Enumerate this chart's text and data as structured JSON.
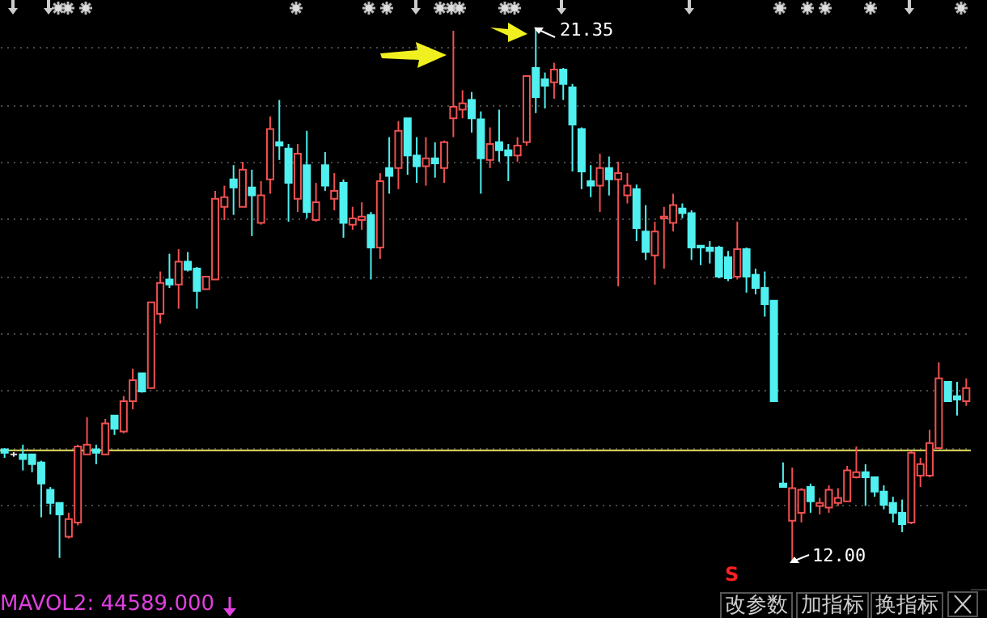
{
  "chart_data": {
    "type": "candlestick",
    "categories": [
      null,
      null,
      null,
      null,
      null,
      null,
      null,
      null,
      null,
      null,
      null,
      null,
      null,
      null,
      null,
      null,
      null,
      null,
      null,
      null,
      null,
      null,
      null,
      null,
      null,
      null,
      null,
      null,
      null,
      null,
      null,
      null,
      null,
      null,
      null,
      null,
      null,
      null,
      null,
      null,
      null,
      null,
      null,
      null,
      null,
      null,
      null,
      null,
      null,
      null,
      null,
      null,
      null,
      null,
      null,
      null,
      null,
      null,
      null,
      null,
      null,
      null,
      null,
      null,
      null,
      null,
      null,
      null,
      null,
      null,
      null,
      null,
      null,
      null,
      null,
      null,
      null,
      null,
      null,
      null,
      null,
      null,
      null,
      null,
      null,
      null,
      null,
      null,
      null,
      null,
      null,
      null,
      null,
      null,
      null,
      null,
      null,
      null,
      null,
      null,
      null,
      null,
      null,
      null,
      null,
      null
    ],
    "ohlc": [
      [
        13.97,
        13.99,
        13.82,
        13.91
      ],
      [
        13.88,
        13.92,
        13.84,
        13.88
      ],
      [
        13.88,
        14.05,
        13.6,
        13.8
      ],
      [
        13.88,
        13.88,
        13.57,
        13.71
      ],
      [
        13.74,
        13.77,
        12.78,
        13.37
      ],
      [
        13.26,
        13.31,
        12.83,
        13.03
      ],
      [
        13.03,
        13.03,
        12.07,
        12.83
      ],
      [
        12.44,
        12.86,
        12.41,
        12.75
      ],
      [
        12.69,
        14.05,
        12.64,
        14.02
      ],
      [
        13.88,
        14.53,
        13.88,
        14.05
      ],
      [
        13.97,
        14.05,
        13.71,
        13.91
      ],
      [
        13.88,
        14.5,
        13.88,
        14.42
      ],
      [
        14.56,
        14.56,
        14.22,
        14.33
      ],
      [
        14.28,
        14.9,
        14.25,
        14.81
      ],
      [
        14.81,
        15.38,
        14.67,
        15.18
      ],
      [
        15.3,
        15.3,
        14.96,
        14.98
      ],
      [
        15.04,
        16.54,
        15.04,
        16.54
      ],
      [
        16.34,
        17.08,
        16.17,
        16.88
      ],
      [
        16.94,
        17.39,
        16.79,
        16.85
      ],
      [
        16.85,
        17.47,
        16.43,
        17.25
      ],
      [
        17.25,
        17.42,
        17.08,
        17.11
      ],
      [
        17.13,
        17.16,
        16.43,
        16.74
      ],
      [
        16.77,
        16.99,
        16.77,
        16.99
      ],
      [
        16.94,
        18.49,
        16.94,
        18.35
      ],
      [
        18.21,
        18.58,
        17.98,
        18.38
      ],
      [
        18.69,
        18.94,
        18.07,
        18.55
      ],
      [
        18.21,
        19.0,
        18.21,
        18.86
      ],
      [
        18.55,
        18.86,
        17.7,
        18.41
      ],
      [
        17.93,
        18.66,
        17.9,
        18.41
      ],
      [
        18.69,
        19.79,
        18.44,
        19.57
      ],
      [
        19.34,
        20.08,
        19.03,
        19.28
      ],
      [
        19.23,
        19.31,
        17.95,
        18.63
      ],
      [
        18.35,
        19.31,
        18.12,
        19.14
      ],
      [
        18.94,
        19.54,
        18.01,
        18.12
      ],
      [
        17.98,
        18.63,
        17.95,
        18.29
      ],
      [
        18.94,
        19.17,
        18.49,
        18.58
      ],
      [
        18.35,
        18.8,
        18.15,
        18.49
      ],
      [
        18.63,
        18.69,
        17.67,
        17.93
      ],
      [
        17.9,
        18.21,
        17.81,
        18.01
      ],
      [
        17.98,
        18.29,
        17.81,
        18.04
      ],
      [
        18.07,
        18.12,
        16.94,
        17.5
      ],
      [
        17.5,
        18.8,
        17.3,
        18.66
      ],
      [
        18.89,
        19.43,
        18.44,
        18.75
      ],
      [
        18.89,
        19.71,
        18.52,
        19.54
      ],
      [
        19.76,
        19.76,
        18.77,
        19.11
      ],
      [
        19.11,
        19.43,
        18.63,
        18.92
      ],
      [
        18.92,
        19.43,
        18.58,
        19.06
      ],
      [
        19.06,
        19.34,
        18.72,
        18.97
      ],
      [
        18.89,
        19.37,
        18.63,
        19.34
      ],
      [
        19.76,
        21.29,
        19.43,
        19.96
      ],
      [
        19.91,
        20.25,
        19.76,
        20.02
      ],
      [
        20.08,
        20.22,
        19.51,
        19.76
      ],
      [
        19.74,
        19.88,
        18.44,
        19.06
      ],
      [
        19.03,
        19.6,
        18.89,
        19.31
      ],
      [
        19.34,
        19.91,
        19.0,
        19.2
      ],
      [
        19.2,
        19.31,
        18.66,
        19.11
      ],
      [
        19.11,
        19.43,
        19.0,
        19.28
      ],
      [
        19.34,
        20.5,
        19.28,
        20.5
      ],
      [
        20.64,
        21.35,
        19.85,
        20.13
      ],
      [
        20.44,
        20.56,
        19.93,
        20.33
      ],
      [
        20.39,
        20.73,
        20.1,
        20.61
      ],
      [
        20.61,
        20.64,
        20.08,
        20.36
      ],
      [
        20.3,
        20.36,
        18.83,
        19.65
      ],
      [
        19.57,
        19.6,
        18.52,
        18.83
      ],
      [
        18.66,
        18.94,
        18.38,
        18.58
      ],
      [
        18.58,
        19.14,
        18.12,
        18.89
      ],
      [
        18.89,
        19.09,
        18.41,
        18.69
      ],
      [
        18.69,
        19.0,
        16.82,
        18.8
      ],
      [
        18.41,
        18.8,
        18.27,
        18.58
      ],
      [
        18.52,
        18.6,
        17.61,
        17.84
      ],
      [
        17.78,
        18.24,
        17.28,
        17.42
      ],
      [
        17.36,
        17.95,
        16.85,
        17.78
      ],
      [
        18.01,
        18.21,
        17.13,
        18.04
      ],
      [
        17.93,
        18.44,
        17.78,
        18.24
      ],
      [
        18.18,
        18.27,
        18.01,
        18.1
      ],
      [
        18.1,
        18.15,
        17.28,
        17.5
      ],
      [
        17.53,
        17.53,
        17.19,
        17.5
      ],
      [
        17.5,
        17.61,
        17.22,
        17.44
      ],
      [
        17.5,
        17.53,
        16.96,
        16.99
      ],
      [
        17.33,
        17.44,
        16.91,
        16.96
      ],
      [
        16.99,
        17.95,
        16.94,
        17.47
      ],
      [
        17.47,
        17.5,
        16.71,
        16.99
      ],
      [
        17.02,
        17.13,
        16.68,
        16.79
      ],
      [
        16.79,
        17.08,
        16.29,
        16.51
      ],
      [
        16.57,
        16.57,
        14.81,
        14.81
      ],
      [
        13.37,
        13.74,
        13.31,
        13.31
      ],
      [
        12.72,
        13.65,
        12.0,
        13.29
      ],
      [
        12.86,
        13.29,
        12.69,
        13.26
      ],
      [
        13.31,
        13.37,
        12.86,
        13.06
      ],
      [
        12.98,
        13.12,
        12.83,
        13.03
      ],
      [
        12.95,
        13.34,
        12.86,
        13.26
      ],
      [
        13.03,
        13.29,
        12.98,
        13.12
      ],
      [
        13.06,
        13.68,
        13.06,
        13.6
      ],
      [
        13.48,
        14.02,
        13.46,
        13.57
      ],
      [
        13.57,
        13.71,
        12.98,
        13.48
      ],
      [
        13.48,
        13.48,
        13.14,
        13.23
      ],
      [
        13.23,
        13.34,
        12.92,
        13.0
      ],
      [
        13.03,
        13.14,
        12.69,
        12.86
      ],
      [
        12.86,
        13.09,
        12.52,
        12.66
      ],
      [
        12.69,
        13.94,
        12.66,
        13.91
      ],
      [
        13.51,
        13.82,
        13.31,
        13.71
      ],
      [
        13.51,
        14.31,
        13.48,
        14.08
      ],
      [
        13.99,
        15.49,
        13.99,
        15.21
      ],
      [
        15.15,
        15.15,
        14.81,
        14.81
      ],
      [
        14.9,
        15.15,
        14.56,
        14.84
      ],
      [
        14.81,
        15.21,
        14.73,
        15.04
      ]
    ],
    "colors": [
      "#50f0f0",
      "#e0e0e0",
      "#50f0f0",
      "#50f0f0",
      "#50f0f0",
      "#50f0f0",
      "#50f0f0",
      "#f05050",
      "#f05050",
      "#f05050",
      "#50f0f0",
      "#f05050",
      "#50f0f0",
      "#f05050",
      "#f05050",
      "#50f0f0",
      "#f05050",
      "#f05050",
      "#50f0f0",
      "#f05050",
      "#50f0f0",
      "#50f0f0",
      "#f05050",
      "#f05050",
      "#f05050",
      "#50f0f0",
      "#f05050",
      "#50f0f0",
      "#f05050",
      "#f05050",
      "#50f0f0",
      "#50f0f0",
      "#f05050",
      "#50f0f0",
      "#f05050",
      "#50f0f0",
      "#f05050",
      "#50f0f0",
      "#f05050",
      "#f05050",
      "#50f0f0",
      "#f05050",
      "#50f0f0",
      "#f05050",
      "#50f0f0",
      "#50f0f0",
      "#f05050",
      "#50f0f0",
      "#f05050",
      "#f05050",
      "#f05050",
      "#50f0f0",
      "#50f0f0",
      "#f05050",
      "#50f0f0",
      "#50f0f0",
      "#f05050",
      "#f05050",
      "#50f0f0",
      "#50f0f0",
      "#f05050",
      "#50f0f0",
      "#50f0f0",
      "#50f0f0",
      "#50f0f0",
      "#f05050",
      "#50f0f0",
      "#f05050",
      "#f05050",
      "#50f0f0",
      "#50f0f0",
      "#f05050",
      "#f05050",
      "#f05050",
      "#50f0f0",
      "#50f0f0",
      "#50f0f0",
      "#50f0f0",
      "#50f0f0",
      "#50f0f0",
      "#f05050",
      "#50f0f0",
      "#50f0f0",
      "#50f0f0",
      "#50f0f0",
      "#50f0f0",
      "#f05050",
      "#f05050",
      "#50f0f0",
      "#f05050",
      "#f05050",
      "#f05050",
      "#f05050",
      "#f05050",
      "#50f0f0",
      "#50f0f0",
      "#50f0f0",
      "#50f0f0",
      "#50f0f0",
      "#f05050",
      "#f05050",
      "#f05050",
      "#f05050",
      "#50f0f0",
      "#50f0f0",
      "#f05050"
    ],
    "ylim": [
      11.5,
      21.8
    ],
    "yticks": [
      {
        "value": 13,
        "label": null
      },
      {
        "value": 14,
        "label": null
      },
      {
        "value": 15,
        "label": null
      },
      {
        "value": 16,
        "label": null
      },
      {
        "value": 17,
        "label": null
      },
      {
        "value": 18,
        "label": null
      },
      {
        "value": 19,
        "label": null
      },
      {
        "value": 20,
        "label": null
      },
      {
        "value": 21,
        "label": null
      }
    ],
    "grid": "y",
    "ref_lines": [
      {
        "axis": "y",
        "value": 13.95,
        "color": "#e8e060"
      }
    ],
    "annotations": [
      "21.35",
      "12.00",
      "S",
      "MAVOL2: 44589.000",
      "改参数",
      "加指标",
      "换指标"
    ]
  }
}
